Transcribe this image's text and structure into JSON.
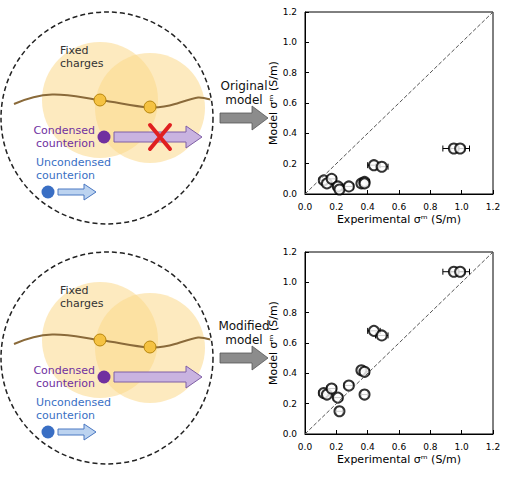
{
  "diagrams": [
    {
      "labels": {
        "fixed": "Fixed charges",
        "condensed": "Condensed counterion",
        "uncondensed": "Uncondensed counterion"
      },
      "condensed_blocked": true,
      "arrow_label": "Original model"
    },
    {
      "labels": {
        "fixed": "Fixed charges",
        "condensed": "Condensed counterion",
        "uncondensed": "Uncondensed counterion"
      },
      "condensed_blocked": false,
      "arrow_label": "Modified model"
    }
  ],
  "chart_data": [
    {
      "type": "scatter",
      "x_label": "Experimental σᵐ (S/m)",
      "y_label": "Model σᵐ (S/m)",
      "xlim": [
        0,
        1.2
      ],
      "ylim": [
        0,
        1.2
      ],
      "xticks": [
        {
          "value": 0,
          "label": "0.0"
        },
        0.2,
        0.4,
        0.6,
        0.8,
        {
          "value": 1,
          "label": "1.0"
        },
        1.2
      ],
      "yticks": [
        {
          "value": 0,
          "label": "0.0"
        },
        0.2,
        0.4,
        0.6,
        0.8,
        {
          "value": 1,
          "label": "1.0"
        },
        1.2
      ],
      "grid": false,
      "marker": "circle_open",
      "color": "#000000",
      "x": [
        0.12,
        0.14,
        0.17,
        0.21,
        0.22,
        0.28,
        0.36,
        0.38,
        0.38,
        0.44,
        0.49,
        0.95,
        0.99
      ],
      "values": [
        0.09,
        0.07,
        0.1,
        0.05,
        0.03,
        0.05,
        0.07,
        0.08,
        0.07,
        0.19,
        0.18,
        0.3,
        0.3
      ],
      "x_error": [
        0.03,
        0.02,
        0.03,
        0.03,
        0.02,
        0.03,
        0.02,
        0.03,
        0.02,
        0.04,
        0.04,
        0.07,
        0.06
      ],
      "reference_line": {
        "x": [
          0,
          1.2
        ],
        "y": [
          0,
          1.2
        ],
        "line_style": "dashed"
      }
    },
    {
      "type": "scatter",
      "x_label": "Experimental σᵐ (S/m)",
      "y_label": "Model σᵐ (S/m)",
      "xlim": [
        0,
        1.2
      ],
      "ylim": [
        0,
        1.2
      ],
      "xticks": [
        {
          "value": 0,
          "label": "0.0"
        },
        0.2,
        0.4,
        0.6,
        0.8,
        {
          "value": 1,
          "label": "1.0"
        },
        1.2
      ],
      "yticks": [
        {
          "value": 0,
          "label": "0.0"
        },
        0.2,
        0.4,
        0.6,
        0.8,
        {
          "value": 1,
          "label": "1.0"
        },
        1.2
      ],
      "grid": false,
      "marker": "circle_open",
      "color": "#000000",
      "x": [
        0.12,
        0.14,
        0.17,
        0.21,
        0.22,
        0.28,
        0.36,
        0.38,
        0.38,
        0.44,
        0.49,
        0.95,
        0.99
      ],
      "values": [
        0.27,
        0.26,
        0.3,
        0.24,
        0.15,
        0.32,
        0.42,
        0.41,
        0.26,
        0.68,
        0.65,
        1.07,
        1.07
      ],
      "x_error": [
        0.03,
        0.02,
        0.03,
        0.03,
        0.02,
        0.03,
        0.02,
        0.03,
        0.02,
        0.04,
        0.04,
        0.07,
        0.06
      ],
      "reference_line": {
        "x": [
          0,
          1.2
        ],
        "y": [
          0,
          1.2
        ],
        "line_style": "dashed"
      }
    }
  ]
}
